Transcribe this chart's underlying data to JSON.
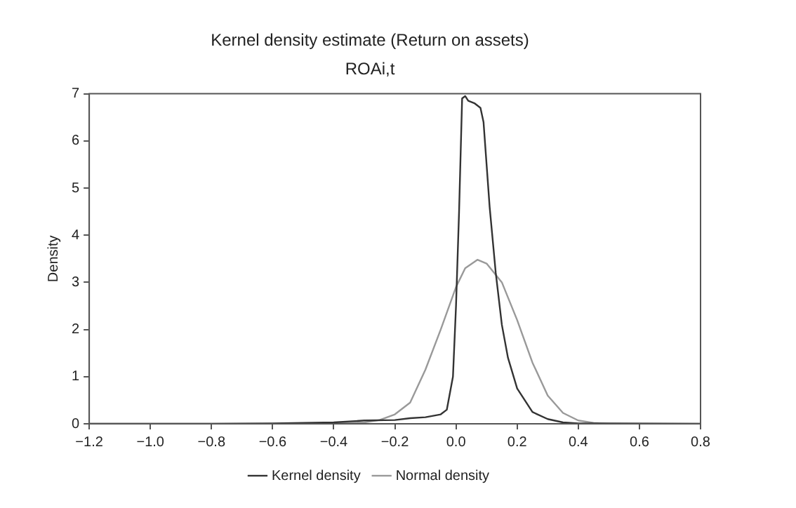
{
  "chart_data": {
    "type": "line",
    "title": "Kernel density estimate (Return on assets)",
    "subtitle": "ROAi,t",
    "ylabel": "Density",
    "xlim": [
      -1.2,
      0.8
    ],
    "xticks": [
      {
        "value": -1.2,
        "label": "−1.2"
      },
      {
        "value": -1,
        "label": "−1.0"
      },
      {
        "value": -0.8,
        "label": "−0.8"
      },
      {
        "value": -0.6,
        "label": "−0.6"
      },
      {
        "value": -0.4,
        "label": "−0.4"
      },
      {
        "value": -0.2,
        "label": "−0.2"
      },
      {
        "value": 0,
        "label": "0.0"
      },
      {
        "value": 0.2,
        "label": "0.2"
      },
      {
        "value": 0.4,
        "label": "0.4"
      },
      {
        "value": 0.6,
        "label": "0.6"
      },
      {
        "value": 0.8,
        "label": "0.8"
      }
    ],
    "ylim": [
      0,
      7
    ],
    "yticks": [
      0,
      1,
      2,
      3,
      4,
      5,
      6,
      7
    ],
    "grid": false,
    "legend": "bottom",
    "marker": "none",
    "line_style": "solid",
    "series": [
      {
        "name": "Kernel density",
        "color": "#333333",
        "x": [
          -1.2,
          -0.8,
          -0.6,
          -0.4,
          -0.3,
          -0.2,
          -0.15,
          -0.1,
          -0.05,
          -0.03,
          -0.01,
          0.0,
          0.01,
          0.02,
          0.03,
          0.04,
          0.06,
          0.08,
          0.09,
          0.1,
          0.11,
          0.12,
          0.13,
          0.15,
          0.17,
          0.2,
          0.25,
          0.3,
          0.35,
          0.4,
          0.5,
          0.8
        ],
        "values": [
          0,
          0,
          0.01,
          0.03,
          0.07,
          0.08,
          0.12,
          0.14,
          0.2,
          0.3,
          1.0,
          2.5,
          4.5,
          6.9,
          6.95,
          6.85,
          6.8,
          6.7,
          6.4,
          5.5,
          4.6,
          3.9,
          3.2,
          2.1,
          1.4,
          0.75,
          0.25,
          0.1,
          0.03,
          0.01,
          0.01,
          0
        ]
      },
      {
        "name": "Normal density",
        "color": "#999999",
        "x": [
          -1.2,
          -0.5,
          -0.4,
          -0.3,
          -0.25,
          -0.2,
          -0.15,
          -0.1,
          -0.05,
          0.0,
          0.03,
          0.07,
          0.1,
          0.15,
          0.2,
          0.25,
          0.3,
          0.35,
          0.4,
          0.45,
          0.5,
          0.6,
          0.8
        ],
        "values": [
          0,
          0,
          0.01,
          0.03,
          0.08,
          0.2,
          0.45,
          1.15,
          2.0,
          2.9,
          3.3,
          3.48,
          3.4,
          3.0,
          2.2,
          1.3,
          0.6,
          0.23,
          0.07,
          0.02,
          0,
          0,
          0
        ]
      }
    ]
  }
}
